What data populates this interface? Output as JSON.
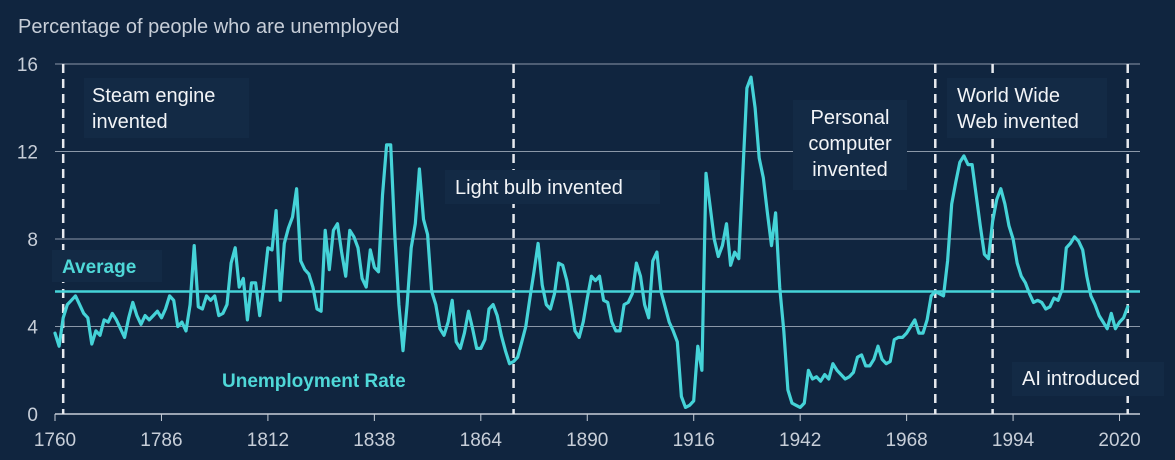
{
  "chart_data": {
    "type": "line",
    "subtitle": "Percentage of people who are unemployed",
    "xlim": [
      1760,
      2025
    ],
    "ylim": [
      0,
      16
    ],
    "x_ticks": [
      1760,
      1786,
      1812,
      1838,
      1864,
      1890,
      1916,
      1942,
      1968,
      1994,
      2020
    ],
    "y_ticks": [
      0,
      4,
      8,
      12,
      16
    ],
    "grid": true,
    "series": [
      {
        "name": "Unemployment Rate",
        "color": "#45d3d8",
        "points": [
          [
            1760,
            3.7
          ],
          [
            1761,
            3.1
          ],
          [
            1762,
            4.4
          ],
          [
            1763,
            5.0
          ],
          [
            1764,
            5.2
          ],
          [
            1765,
            5.4
          ],
          [
            1766,
            5.0
          ],
          [
            1767,
            4.6
          ],
          [
            1768,
            4.4
          ],
          [
            1769,
            3.2
          ],
          [
            1770,
            3.8
          ],
          [
            1771,
            3.6
          ],
          [
            1772,
            4.3
          ],
          [
            1773,
            4.2
          ],
          [
            1774,
            4.6
          ],
          [
            1775,
            4.3
          ],
          [
            1776,
            3.9
          ],
          [
            1777,
            3.5
          ],
          [
            1778,
            4.4
          ],
          [
            1779,
            5.1
          ],
          [
            1780,
            4.5
          ],
          [
            1781,
            4.1
          ],
          [
            1782,
            4.5
          ],
          [
            1783,
            4.3
          ],
          [
            1784,
            4.5
          ],
          [
            1785,
            4.7
          ],
          [
            1786,
            4.4
          ],
          [
            1787,
            4.8
          ],
          [
            1788,
            5.4
          ],
          [
            1789,
            5.2
          ],
          [
            1790,
            4.0
          ],
          [
            1791,
            4.2
          ],
          [
            1792,
            3.8
          ],
          [
            1793,
            5.0
          ],
          [
            1794,
            7.7
          ],
          [
            1795,
            4.9
          ],
          [
            1796,
            4.8
          ],
          [
            1797,
            5.4
          ],
          [
            1798,
            5.2
          ],
          [
            1799,
            5.4
          ],
          [
            1800,
            4.5
          ],
          [
            1801,
            4.6
          ],
          [
            1802,
            5.0
          ],
          [
            1803,
            6.9
          ],
          [
            1804,
            7.6
          ],
          [
            1805,
            5.8
          ],
          [
            1806,
            6.2
          ],
          [
            1807,
            4.3
          ],
          [
            1808,
            6.0
          ],
          [
            1809,
            6.0
          ],
          [
            1810,
            4.5
          ],
          [
            1811,
            5.9
          ],
          [
            1812,
            7.6
          ],
          [
            1813,
            7.5
          ],
          [
            1814,
            9.3
          ],
          [
            1815,
            5.2
          ],
          [
            1816,
            7.8
          ],
          [
            1817,
            8.5
          ],
          [
            1818,
            9.0
          ],
          [
            1819,
            10.3
          ],
          [
            1820,
            7.0
          ],
          [
            1821,
            6.6
          ],
          [
            1822,
            6.4
          ],
          [
            1823,
            5.8
          ],
          [
            1824,
            4.8
          ],
          [
            1825,
            4.7
          ],
          [
            1826,
            8.4
          ],
          [
            1827,
            6.6
          ],
          [
            1828,
            8.4
          ],
          [
            1829,
            8.7
          ],
          [
            1830,
            7.4
          ],
          [
            1831,
            6.3
          ],
          [
            1832,
            8.4
          ],
          [
            1833,
            8.1
          ],
          [
            1834,
            7.6
          ],
          [
            1835,
            6.2
          ],
          [
            1836,
            5.8
          ],
          [
            1837,
            7.5
          ],
          [
            1838,
            6.7
          ],
          [
            1839,
            6.5
          ],
          [
            1840,
            10.0
          ],
          [
            1841,
            12.3
          ],
          [
            1842,
            12.3
          ],
          [
            1843,
            8.2
          ],
          [
            1844,
            5.0
          ],
          [
            1845,
            2.9
          ],
          [
            1846,
            5.0
          ],
          [
            1847,
            7.6
          ],
          [
            1848,
            8.7
          ],
          [
            1849,
            11.2
          ],
          [
            1850,
            8.9
          ],
          [
            1851,
            8.2
          ],
          [
            1852,
            5.6
          ],
          [
            1853,
            5.0
          ],
          [
            1854,
            3.9
          ],
          [
            1855,
            3.6
          ],
          [
            1856,
            4.2
          ],
          [
            1857,
            5.2
          ],
          [
            1858,
            3.3
          ],
          [
            1859,
            3.0
          ],
          [
            1860,
            3.7
          ],
          [
            1861,
            4.7
          ],
          [
            1862,
            3.9
          ],
          [
            1863,
            3.0
          ],
          [
            1864,
            3.0
          ],
          [
            1865,
            3.4
          ],
          [
            1866,
            4.8
          ],
          [
            1867,
            5.0
          ],
          [
            1868,
            4.5
          ],
          [
            1869,
            3.6
          ],
          [
            1870,
            2.9
          ],
          [
            1871,
            2.3
          ],
          [
            1872,
            2.4
          ],
          [
            1873,
            2.6
          ],
          [
            1874,
            3.3
          ],
          [
            1875,
            4.0
          ],
          [
            1876,
            5.3
          ],
          [
            1877,
            6.5
          ],
          [
            1878,
            7.8
          ],
          [
            1879,
            5.9
          ],
          [
            1880,
            5.0
          ],
          [
            1881,
            4.8
          ],
          [
            1882,
            5.5
          ],
          [
            1883,
            6.9
          ],
          [
            1884,
            6.8
          ],
          [
            1885,
            6.1
          ],
          [
            1886,
            5.0
          ],
          [
            1887,
            3.8
          ],
          [
            1888,
            3.5
          ],
          [
            1889,
            4.2
          ],
          [
            1890,
            5.3
          ],
          [
            1891,
            6.3
          ],
          [
            1892,
            6.1
          ],
          [
            1893,
            6.3
          ],
          [
            1894,
            5.2
          ],
          [
            1895,
            5.1
          ],
          [
            1896,
            4.2
          ],
          [
            1897,
            3.8
          ],
          [
            1898,
            3.8
          ],
          [
            1899,
            5.0
          ],
          [
            1900,
            5.1
          ],
          [
            1901,
            5.5
          ],
          [
            1902,
            6.9
          ],
          [
            1903,
            6.3
          ],
          [
            1904,
            5.0
          ],
          [
            1905,
            4.4
          ],
          [
            1906,
            7.0
          ],
          [
            1907,
            7.4
          ],
          [
            1908,
            5.6
          ],
          [
            1909,
            4.9
          ],
          [
            1910,
            4.2
          ],
          [
            1911,
            3.8
          ],
          [
            1912,
            3.3
          ],
          [
            1913,
            0.8
          ],
          [
            1914,
            0.3
          ],
          [
            1915,
            0.4
          ],
          [
            1916,
            0.6
          ],
          [
            1917,
            3.1
          ],
          [
            1918,
            2.0
          ],
          [
            1919,
            11.0
          ],
          [
            1920,
            9.5
          ],
          [
            1921,
            8.0
          ],
          [
            1922,
            7.2
          ],
          [
            1923,
            7.7
          ],
          [
            1924,
            8.7
          ],
          [
            1925,
            6.8
          ],
          [
            1926,
            7.4
          ],
          [
            1927,
            7.1
          ],
          [
            1928,
            11.0
          ],
          [
            1929,
            14.9
          ],
          [
            1930,
            15.4
          ],
          [
            1931,
            14.0
          ],
          [
            1932,
            11.7
          ],
          [
            1933,
            10.8
          ],
          [
            1934,
            9.2
          ],
          [
            1935,
            7.7
          ],
          [
            1936,
            9.2
          ],
          [
            1937,
            5.8
          ],
          [
            1938,
            3.8
          ],
          [
            1939,
            1.1
          ],
          [
            1940,
            0.5
          ],
          [
            1941,
            0.4
          ],
          [
            1942,
            0.3
          ],
          [
            1943,
            0.5
          ],
          [
            1944,
            2.0
          ],
          [
            1945,
            1.6
          ],
          [
            1946,
            1.7
          ],
          [
            1947,
            1.5
          ],
          [
            1948,
            1.8
          ],
          [
            1949,
            1.6
          ],
          [
            1950,
            2.3
          ],
          [
            1951,
            2.0
          ],
          [
            1952,
            1.8
          ],
          [
            1953,
            1.6
          ],
          [
            1954,
            1.7
          ],
          [
            1955,
            1.9
          ],
          [
            1956,
            2.6
          ],
          [
            1957,
            2.7
          ],
          [
            1958,
            2.2
          ],
          [
            1959,
            2.2
          ],
          [
            1960,
            2.5
          ],
          [
            1961,
            3.1
          ],
          [
            1962,
            2.5
          ],
          [
            1963,
            2.3
          ],
          [
            1964,
            2.4
          ],
          [
            1965,
            3.4
          ],
          [
            1966,
            3.5
          ],
          [
            1967,
            3.5
          ],
          [
            1968,
            3.7
          ],
          [
            1969,
            4.0
          ],
          [
            1970,
            4.3
          ],
          [
            1971,
            3.7
          ],
          [
            1972,
            3.7
          ],
          [
            1973,
            4.3
          ],
          [
            1974,
            5.4
          ],
          [
            1975,
            5.6
          ],
          [
            1976,
            5.5
          ],
          [
            1977,
            5.4
          ],
          [
            1978,
            7.0
          ],
          [
            1979,
            9.6
          ],
          [
            1980,
            10.6
          ],
          [
            1981,
            11.5
          ],
          [
            1982,
            11.8
          ],
          [
            1983,
            11.4
          ],
          [
            1984,
            11.4
          ],
          [
            1985,
            10.0
          ],
          [
            1986,
            8.6
          ],
          [
            1987,
            7.3
          ],
          [
            1988,
            7.1
          ],
          [
            1989,
            8.8
          ],
          [
            1990,
            9.8
          ],
          [
            1991,
            10.3
          ],
          [
            1992,
            9.6
          ],
          [
            1993,
            8.6
          ],
          [
            1994,
            8.0
          ],
          [
            1995,
            6.9
          ],
          [
            1996,
            6.3
          ],
          [
            1997,
            6.0
          ],
          [
            1998,
            5.5
          ],
          [
            1999,
            5.1
          ],
          [
            2000,
            5.2
          ],
          [
            2001,
            5.1
          ],
          [
            2002,
            4.8
          ],
          [
            2003,
            4.9
          ],
          [
            2004,
            5.3
          ],
          [
            2005,
            5.2
          ],
          [
            2006,
            5.7
          ],
          [
            2007,
            7.6
          ],
          [
            2008,
            7.8
          ],
          [
            2009,
            8.1
          ],
          [
            2010,
            7.9
          ],
          [
            2011,
            7.5
          ],
          [
            2012,
            6.3
          ],
          [
            2013,
            5.4
          ],
          [
            2014,
            5.0
          ],
          [
            2015,
            4.5
          ],
          [
            2016,
            4.2
          ],
          [
            2017,
            3.9
          ],
          [
            2018,
            4.6
          ],
          [
            2019,
            3.9
          ],
          [
            2020,
            4.2
          ],
          [
            2021,
            4.4
          ],
          [
            2022,
            4.9
          ]
        ]
      }
    ],
    "average": {
      "value": 5.6,
      "label": "Average",
      "color": "#45d3d8"
    },
    "series_label": "Unemployment Rate",
    "events": [
      {
        "year": 1762,
        "label": [
          "Steam engine",
          "invented"
        ]
      },
      {
        "year": 1872,
        "label": [
          "Light bulb invented"
        ]
      },
      {
        "year": 1975,
        "label": [
          "Personal",
          "computer",
          "invented"
        ]
      },
      {
        "year": 1989,
        "label": [
          "World Wide",
          "Web invented"
        ]
      },
      {
        "year": 2022,
        "label": [
          "AI introduced"
        ]
      }
    ]
  }
}
